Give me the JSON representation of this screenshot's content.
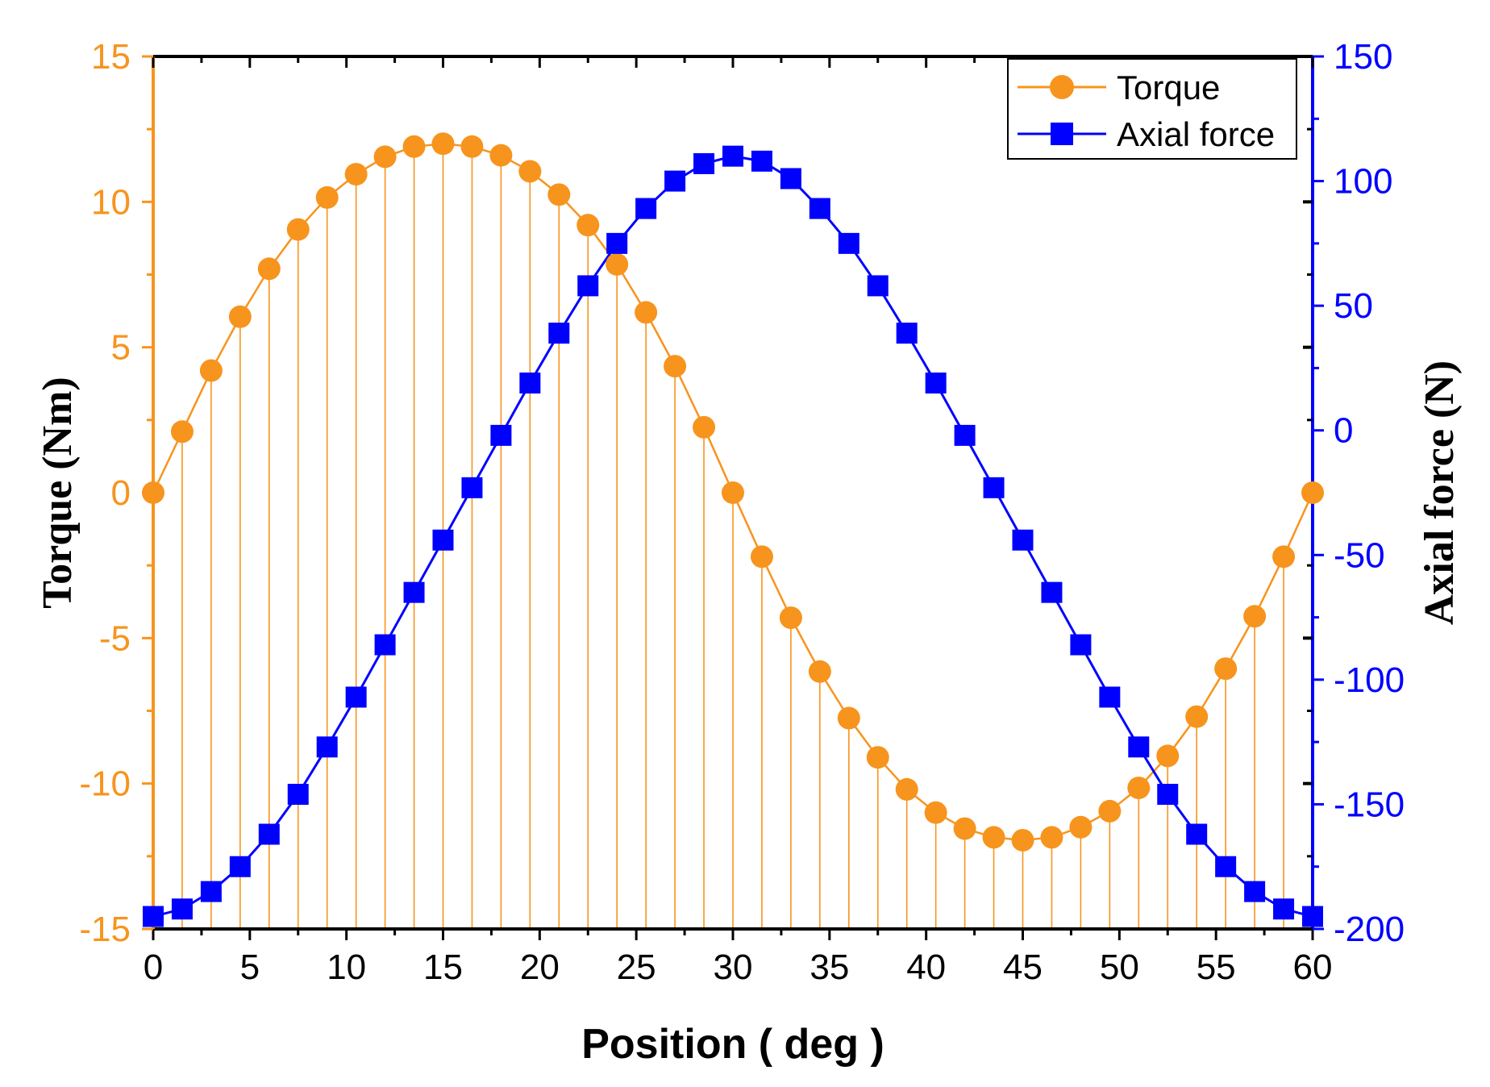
{
  "chart_data": {
    "type": "line",
    "title": "",
    "xlabel": "Position ( deg )",
    "ylabel_left": "Torque (Nm)",
    "ylabel_right": "Axial force (N)",
    "xlim": [
      0,
      60
    ],
    "ylim_left": [
      -15,
      15
    ],
    "ylim_right": [
      -200,
      150
    ],
    "xticks": [
      0,
      5,
      10,
      15,
      20,
      25,
      30,
      35,
      40,
      45,
      50,
      55,
      60
    ],
    "yticks_left": [
      -15,
      -10,
      -5,
      0,
      5,
      10,
      15
    ],
    "yticks_right": [
      -200,
      -150,
      -100,
      -50,
      0,
      50,
      100,
      150
    ],
    "xtick_labels": [
      "0",
      "5",
      "10",
      "15",
      "20",
      "25",
      "30",
      "35",
      "40",
      "45",
      "50",
      "55",
      "60"
    ],
    "yticks_left_labels": [
      "-15",
      "-10",
      "-5",
      "0",
      "5",
      "10",
      "15"
    ],
    "yticks_right_labels": [
      "-200",
      "-150",
      "-100",
      "-50",
      "0",
      "50",
      "100",
      "150"
    ],
    "x": [
      0,
      1.5,
      3,
      4.5,
      6,
      7.5,
      9,
      10.5,
      12,
      13.5,
      15,
      16.5,
      18,
      19.5,
      21,
      22.5,
      24,
      25.5,
      27,
      28.5,
      30,
      31.5,
      33,
      34.5,
      36,
      37.5,
      39,
      40.5,
      42,
      43.5,
      45,
      46.5,
      48,
      49.5,
      51,
      52.5,
      54,
      55.5,
      57,
      58.5,
      60
    ],
    "series": [
      {
        "name": "Torque",
        "axis": "left",
        "color": "#F7941D",
        "marker": "circle",
        "drop_lines": true,
        "values": [
          0,
          2.1,
          4.2,
          6.05,
          7.7,
          9.05,
          10.15,
          10.95,
          11.55,
          11.9,
          12.0,
          11.9,
          11.6,
          11.05,
          10.25,
          9.2,
          7.85,
          6.2,
          4.35,
          2.25,
          0,
          -2.2,
          -4.3,
          -6.15,
          -7.75,
          -9.1,
          -10.2,
          -11.0,
          -11.55,
          -11.85,
          -11.95,
          -11.85,
          -11.5,
          -10.95,
          -10.15,
          -9.05,
          -7.7,
          -6.05,
          -4.25,
          -2.2,
          0
        ]
      },
      {
        "name": "Axial force",
        "axis": "right",
        "color": "#0000FF",
        "marker": "square",
        "drop_lines": false,
        "values": [
          -195,
          -192,
          -185,
          -175,
          -162,
          -146,
          -127,
          -107,
          -86,
          -65,
          -44,
          -23,
          -2,
          19,
          39,
          58,
          75,
          89,
          100,
          107,
          110,
          108,
          101,
          89,
          75,
          58,
          39,
          19,
          -2,
          -23,
          -44,
          -65,
          -86,
          -107,
          -127,
          -146,
          -162,
          -175,
          -185,
          -192,
          -195
        ]
      }
    ],
    "legend": {
      "position": "top-right",
      "entries": [
        "Torque",
        "Axial force"
      ]
    },
    "colors": {
      "left_axis": "#F7941D",
      "right_axis": "#0000FF",
      "frame": "#000000"
    }
  }
}
